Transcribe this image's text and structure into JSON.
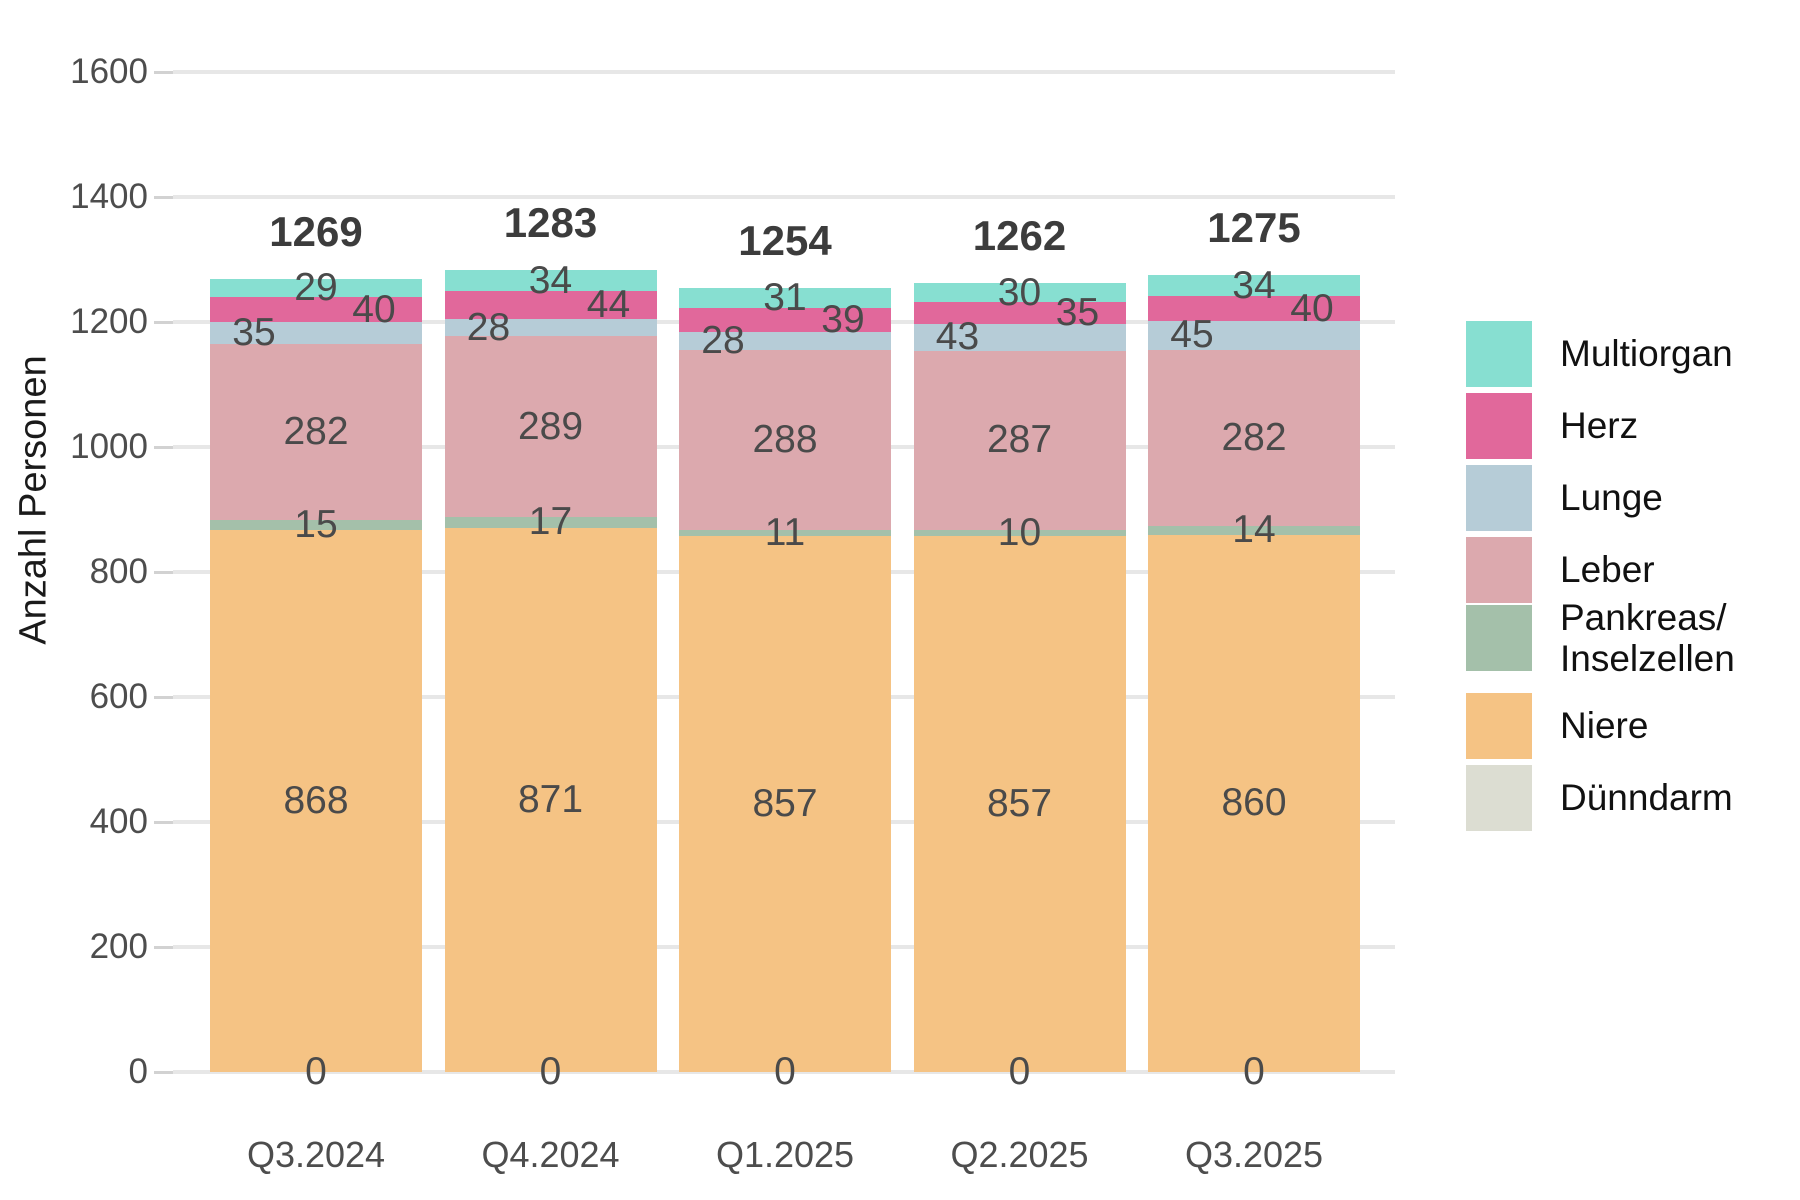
{
  "chart_data": {
    "type": "bar",
    "stacked": true,
    "title": "",
    "xlabel": "",
    "ylabel": "Anzahl Personen",
    "ylim": [
      0,
      1600
    ],
    "ytick_step": 200,
    "grid": true,
    "legend_position": "right",
    "categories": [
      "Q3.2024",
      "Q4.2024",
      "Q1.2025",
      "Q2.2025",
      "Q3.2025"
    ],
    "totals": [
      1269,
      1283,
      1254,
      1262,
      1275
    ],
    "series": [
      {
        "name": "Dünndarm",
        "color": "#dcddd2",
        "label_dx": 0,
        "values": [
          0,
          0,
          0,
          0,
          0
        ]
      },
      {
        "name": "Niere",
        "color": "#f5c384",
        "label_dx": 0,
        "values": [
          868,
          871,
          857,
          857,
          860
        ]
      },
      {
        "name": "Pankreas/Inselzellen",
        "color": "#a4c0aa",
        "label_dx": 0,
        "values": [
          15,
          17,
          11,
          10,
          14
        ]
      },
      {
        "name": "Leber",
        "color": "#dca9ae",
        "label_dx": 0,
        "values": [
          282,
          289,
          288,
          287,
          282
        ]
      },
      {
        "name": "Lunge",
        "color": "#b6ccd7",
        "label_dx": -62,
        "values": [
          35,
          28,
          28,
          43,
          45
        ]
      },
      {
        "name": "Herz",
        "color": "#e1689b",
        "label_dx": 58,
        "values": [
          40,
          44,
          39,
          35,
          40
        ]
      },
      {
        "name": "Multiorgan",
        "color": "#87dfd1",
        "label_dx": 0,
        "values": [
          29,
          34,
          31,
          30,
          34
        ]
      }
    ],
    "legend": [
      {
        "label": "Multiorgan",
        "color": "#87dfd1"
      },
      {
        "label": "Herz",
        "color": "#e1689b"
      },
      {
        "label": "Lunge",
        "color": "#b6ccd7"
      },
      {
        "label": "Leber",
        "color": "#dca9ae"
      },
      {
        "label": "Pankreas/\nInselzellen",
        "color": "#a4c0aa"
      },
      {
        "label": "Niere",
        "color": "#f5c384"
      },
      {
        "label": "Dünndarm",
        "color": "#dcddd2"
      }
    ]
  }
}
